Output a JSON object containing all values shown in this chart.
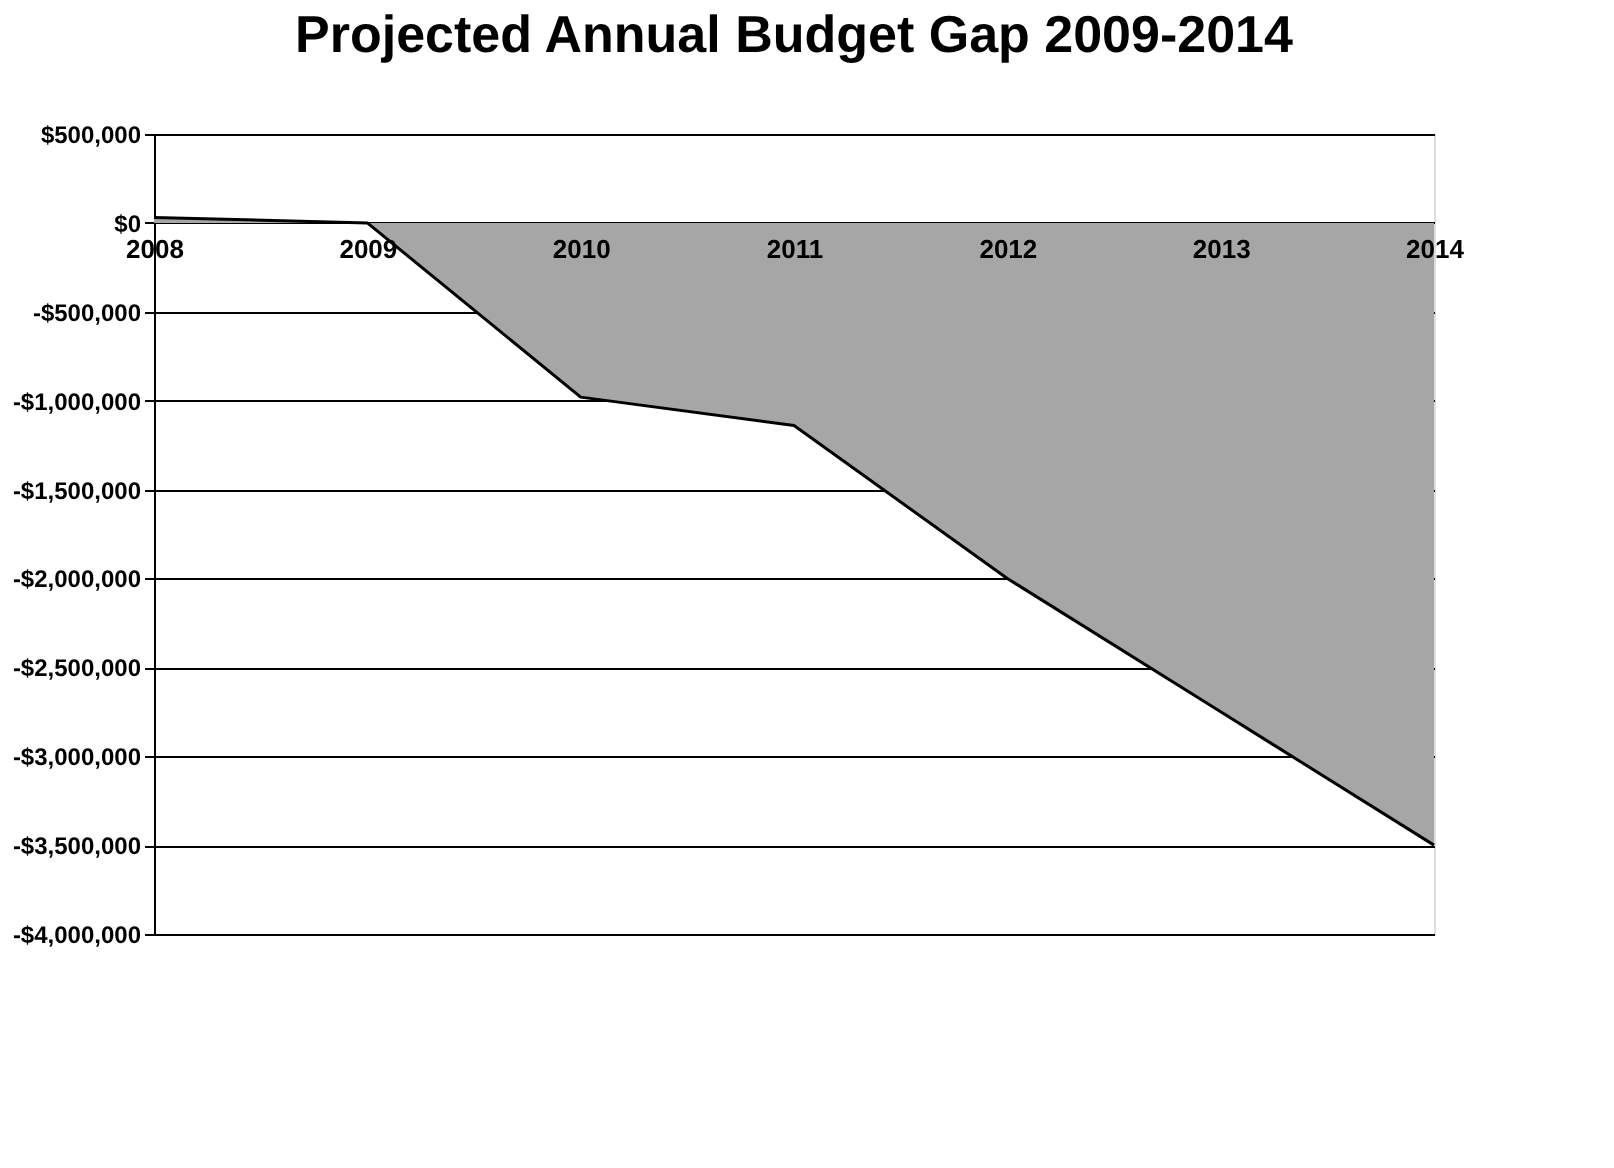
{
  "chart_data": {
    "type": "area",
    "title": "Projected Annual Budget Gap 2009-2014",
    "x": [
      2008,
      2009,
      2010,
      2011,
      2012,
      2013,
      2014
    ],
    "values": [
      30000,
      0,
      -980000,
      -1140000,
      -2000000,
      -2750000,
      -3500000
    ],
    "color": "#a6a6a6",
    "xlim": [
      2008,
      2014
    ],
    "xticks": [
      2008,
      2009,
      2010,
      2011,
      2012,
      2013,
      2014
    ],
    "ylim": [
      -4000000,
      500000
    ],
    "yticks": [
      {
        "value": 500000,
        "label": "$500,000"
      },
      {
        "value": 0,
        "label": "$0"
      },
      {
        "value": -500000,
        "label": "-$500,000"
      },
      {
        "value": -1000000,
        "label": "-$1,000,000"
      },
      {
        "value": -1500000,
        "label": "-$1,500,000"
      },
      {
        "value": -2000000,
        "label": "-$2,000,000"
      },
      {
        "value": -2500000,
        "label": "-$2,500,000"
      },
      {
        "value": -3000000,
        "label": "-$3,000,000"
      },
      {
        "value": -3500000,
        "label": "-$3,500,000"
      },
      {
        "value": -4000000,
        "label": "-$4,000,000"
      }
    ],
    "grid": "y"
  }
}
